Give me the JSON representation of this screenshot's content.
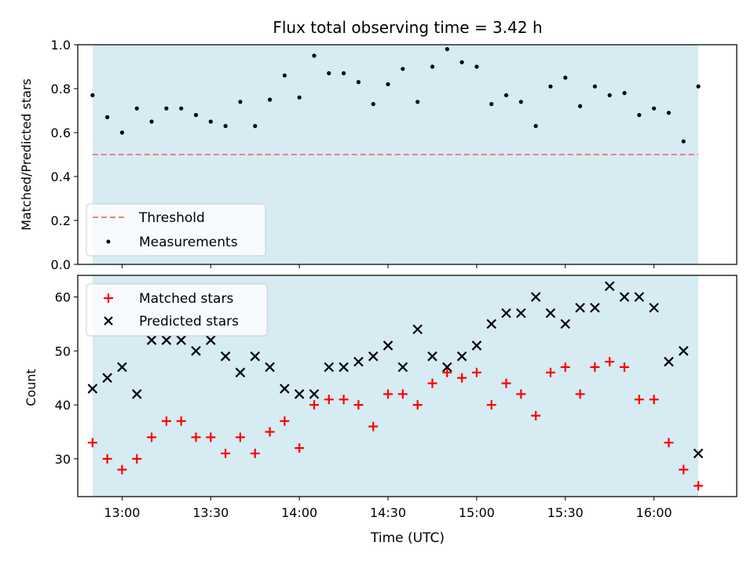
{
  "chart_data": [
    {
      "type": "scatter",
      "title": "Flux total observing time = 3.42 h",
      "xlabel": "",
      "ylabel": "Matched/Predicted stars",
      "ylim": [
        0,
        1
      ],
      "y_ticks": [
        "0.0",
        "0.2",
        "0.4",
        "0.6",
        "0.8",
        "1.0"
      ],
      "shaded_span": [
        "12:50",
        "16:15"
      ],
      "threshold": {
        "name": "Threshold",
        "value": 0.5,
        "style": "dashed",
        "color": "#f08080"
      },
      "series": [
        {
          "name": "Measurements",
          "marker": "dot",
          "color": "#000000",
          "x": [
            "12:50",
            "12:55",
            "13:00",
            "13:05",
            "13:10",
            "13:15",
            "13:20",
            "13:25",
            "13:30",
            "13:35",
            "13:40",
            "13:45",
            "13:50",
            "13:55",
            "14:00",
            "14:05",
            "14:10",
            "14:15",
            "14:20",
            "14:25",
            "14:30",
            "14:35",
            "14:40",
            "14:45",
            "14:50",
            "14:55",
            "15:00",
            "15:05",
            "15:10",
            "15:15",
            "15:20",
            "15:25",
            "15:30",
            "15:35",
            "15:40",
            "15:45",
            "15:50",
            "15:55",
            "16:00",
            "16:05",
            "16:10",
            "16:15"
          ],
          "y": [
            0.77,
            0.67,
            0.6,
            0.71,
            0.65,
            0.71,
            0.71,
            0.68,
            0.65,
            0.63,
            0.74,
            0.63,
            0.75,
            0.86,
            0.76,
            0.95,
            0.87,
            0.87,
            0.83,
            0.73,
            0.82,
            0.89,
            0.74,
            0.9,
            0.98,
            0.92,
            0.9,
            0.73,
            0.77,
            0.74,
            0.63,
            0.81,
            0.85,
            0.72,
            0.81,
            0.77,
            0.78,
            0.68,
            0.71,
            0.69,
            0.56,
            0.81
          ]
        }
      ],
      "legend": {
        "position": "lower-left",
        "entries": [
          "Threshold",
          "Measurements"
        ]
      }
    },
    {
      "type": "scatter",
      "title": "",
      "xlabel": "Time (UTC)",
      "ylabel": "Count",
      "ylim": [
        23,
        64
      ],
      "y_ticks": [
        "30",
        "40",
        "50",
        "60"
      ],
      "xlim": [
        "12:45",
        "16:28"
      ],
      "x_ticks": [
        "13:00",
        "13:30",
        "14:00",
        "14:30",
        "15:00",
        "15:30",
        "16:00"
      ],
      "shaded_span": [
        "12:50",
        "16:15"
      ],
      "series": [
        {
          "name": "Matched stars",
          "marker": "plus",
          "color": "#ff0000",
          "x": [
            "12:50",
            "12:55",
            "13:00",
            "13:05",
            "13:10",
            "13:15",
            "13:20",
            "13:25",
            "13:30",
            "13:35",
            "13:40",
            "13:45",
            "13:50",
            "13:55",
            "14:00",
            "14:05",
            "14:10",
            "14:15",
            "14:20",
            "14:25",
            "14:30",
            "14:35",
            "14:40",
            "14:45",
            "14:50",
            "14:55",
            "15:00",
            "15:05",
            "15:10",
            "15:15",
            "15:20",
            "15:25",
            "15:30",
            "15:35",
            "15:40",
            "15:45",
            "15:50",
            "15:55",
            "16:00",
            "16:05",
            "16:10",
            "16:15"
          ],
          "y": [
            33,
            30,
            28,
            30,
            34,
            37,
            37,
            34,
            34,
            31,
            34,
            31,
            35,
            37,
            32,
            40,
            41,
            41,
            40,
            36,
            42,
            42,
            40,
            44,
            46,
            45,
            46,
            40,
            44,
            42,
            38,
            46,
            47,
            42,
            47,
            48,
            47,
            41,
            41,
            33,
            28,
            25
          ]
        },
        {
          "name": "Predicted stars",
          "marker": "x",
          "color": "#000000",
          "x": [
            "12:50",
            "12:55",
            "13:00",
            "13:05",
            "13:10",
            "13:15",
            "13:20",
            "13:25",
            "13:30",
            "13:35",
            "13:40",
            "13:45",
            "13:50",
            "13:55",
            "14:00",
            "14:05",
            "14:10",
            "14:15",
            "14:20",
            "14:25",
            "14:30",
            "14:35",
            "14:40",
            "14:45",
            "14:50",
            "14:55",
            "15:00",
            "15:05",
            "15:10",
            "15:15",
            "15:20",
            "15:25",
            "15:30",
            "15:35",
            "15:40",
            "15:45",
            "15:50",
            "15:55",
            "16:00",
            "16:05",
            "16:10",
            "16:15"
          ],
          "y": [
            43,
            45,
            47,
            42,
            52,
            52,
            52,
            50,
            52,
            49,
            46,
            49,
            47,
            43,
            42,
            42,
            47,
            47,
            48,
            49,
            51,
            47,
            54,
            49,
            47,
            49,
            51,
            55,
            57,
            57,
            60,
            57,
            55,
            58,
            58,
            62,
            60,
            60,
            58,
            48,
            50,
            31
          ]
        }
      ],
      "legend": {
        "position": "upper-left",
        "entries": [
          "Matched stars",
          "Predicted stars"
        ]
      }
    }
  ],
  "colors": {
    "span_fill": "#add8e6",
    "threshold": "#f08080",
    "matched": "#ff0000",
    "predicted": "#000000",
    "measurement": "#000000"
  }
}
